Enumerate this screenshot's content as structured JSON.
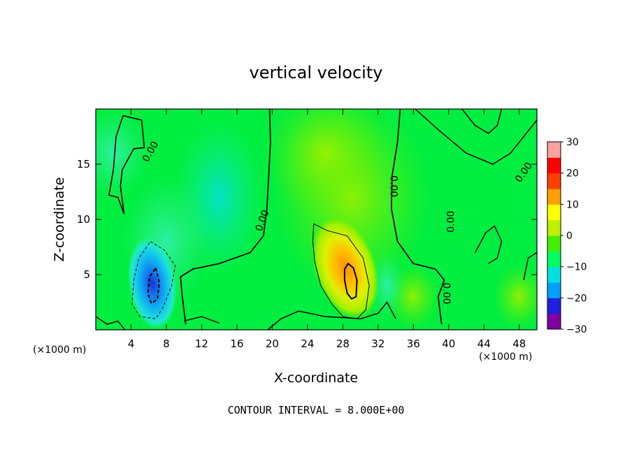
{
  "chart_data": {
    "type": "heatmap",
    "title": "vertical velocity",
    "xlabel": "X-coordinate",
    "ylabel": "Z-coordinate",
    "x_unit_left": "(×1000 m)",
    "x_unit_right": "(×1000 m)",
    "xlim": [
      0,
      50
    ],
    "ylim": [
      0,
      20
    ],
    "x_ticks": [
      4,
      8,
      12,
      16,
      20,
      24,
      28,
      32,
      36,
      40,
      44,
      48
    ],
    "y_ticks": [
      5,
      10,
      15
    ],
    "x_tick_labels": [
      "4",
      "8",
      "12",
      "16",
      "20",
      "24",
      "28",
      "32",
      "36",
      "40",
      "44",
      "48"
    ],
    "y_tick_labels": [
      "5",
      "10",
      "15"
    ],
    "colorbar": {
      "min": -30,
      "max": 30,
      "ticks": [
        30,
        20,
        10,
        0,
        -10,
        -20,
        -30
      ],
      "tick_labels": [
        "30",
        "20",
        "10",
        "0",
        "−10",
        "−20",
        "−30"
      ],
      "colors": [
        "#8000a0",
        "#2020e0",
        "#00a0ff",
        "#00e0e0",
        "#00ff60",
        "#40f000",
        "#c0f000",
        "#ffff00",
        "#ffa000",
        "#ff4000",
        "#ff0000",
        "#ffa0a0"
      ]
    },
    "features": [
      {
        "kind": "updraft",
        "x": 28.5,
        "z": 5.2,
        "peak": 17
      },
      {
        "kind": "downdraft",
        "x": 6.5,
        "z": 4.0,
        "peak": -22
      },
      {
        "kind": "weak_downdraft",
        "x": 14,
        "z": 12,
        "peak": -4
      },
      {
        "kind": "weak_updraft",
        "x": 28,
        "z": 14,
        "peak": 6
      }
    ],
    "contour_labels": [
      "0.00",
      "0.00",
      "0.00",
      "0.00",
      "0.00",
      "0.00"
    ],
    "footer": "CONTOUR INTERVAL = 8.000E+00"
  }
}
